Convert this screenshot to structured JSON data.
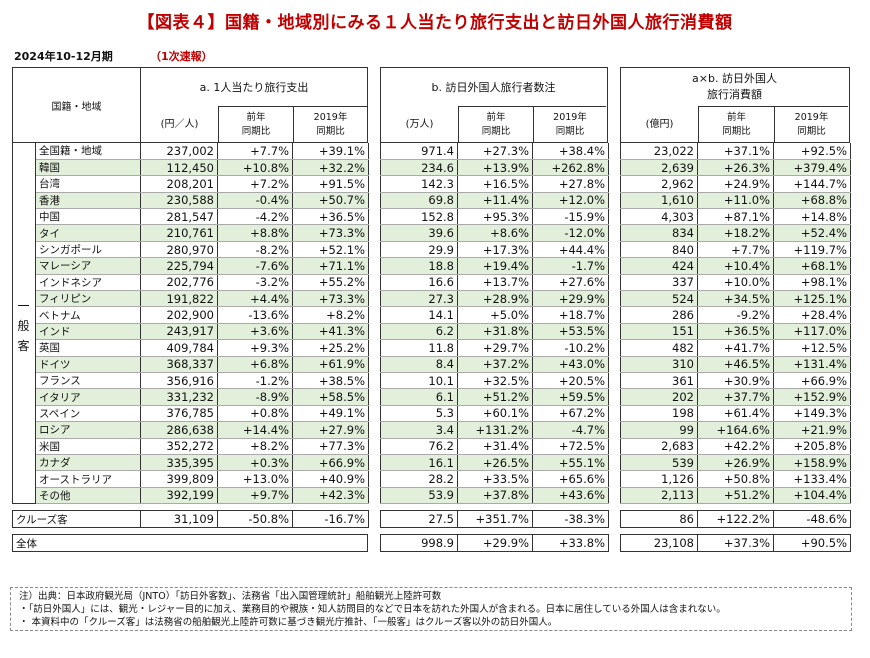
{
  "title": "【図表４】国籍・地域別にみる１人当たり旅行支出と訪日外国人旅行消費額",
  "period": "2024年10-12月期",
  "prelim": "（1次速報）",
  "header": {
    "region": "国籍・地域",
    "a_title": "a. 1人当たり旅行支出",
    "a_unit": "(円／人)",
    "b_title": "b. 訪日外国人旅行者数注",
    "b_unit": "(万人)",
    "c_title1": "a×b. 訪日外国人",
    "c_title2": "旅行消費額",
    "c_unit": "(億円)",
    "yoy1": "前年",
    "yoy2": "同期比",
    "v19_1": "2019年",
    "v19_2": "同期比"
  },
  "general_label": [
    "一",
    "般",
    "客"
  ],
  "rows": [
    [
      "全国籍・地域",
      "237,002",
      "+7.7%",
      "+39.1%",
      "971.4",
      "+27.3%",
      "+38.4%",
      "23,022",
      "+37.1%",
      "+92.5%"
    ],
    [
      "韓国",
      "112,450",
      "+10.8%",
      "+32.2%",
      "234.6",
      "+13.9%",
      "+262.8%",
      "2,639",
      "+26.3%",
      "+379.4%"
    ],
    [
      "台湾",
      "208,201",
      "+7.2%",
      "+91.5%",
      "142.3",
      "+16.5%",
      "+27.8%",
      "2,962",
      "+24.9%",
      "+144.7%"
    ],
    [
      "香港",
      "230,588",
      "-0.4%",
      "+50.7%",
      "69.8",
      "+11.4%",
      "+12.0%",
      "1,610",
      "+11.0%",
      "+68.8%"
    ],
    [
      "中国",
      "281,547",
      "-4.2%",
      "+36.5%",
      "152.8",
      "+95.3%",
      "-15.9%",
      "4,303",
      "+87.1%",
      "+14.8%"
    ],
    [
      "タイ",
      "210,761",
      "+8.8%",
      "+73.3%",
      "39.6",
      "+8.6%",
      "-12.0%",
      "834",
      "+18.2%",
      "+52.4%"
    ],
    [
      "シンガポール",
      "280,970",
      "-8.2%",
      "+52.1%",
      "29.9",
      "+17.3%",
      "+44.4%",
      "840",
      "+7.7%",
      "+119.7%"
    ],
    [
      "マレーシア",
      "225,794",
      "-7.6%",
      "+71.1%",
      "18.8",
      "+19.4%",
      "-1.7%",
      "424",
      "+10.4%",
      "+68.1%"
    ],
    [
      "インドネシア",
      "202,776",
      "-3.2%",
      "+55.2%",
      "16.6",
      "+13.7%",
      "+27.6%",
      "337",
      "+10.0%",
      "+98.1%"
    ],
    [
      "フィリピン",
      "191,822",
      "+4.4%",
      "+73.3%",
      "27.3",
      "+28.9%",
      "+29.9%",
      "524",
      "+34.5%",
      "+125.1%"
    ],
    [
      "ベトナム",
      "202,900",
      "-13.6%",
      "+8.2%",
      "14.1",
      "+5.0%",
      "+18.7%",
      "286",
      "-9.2%",
      "+28.4%"
    ],
    [
      "インド",
      "243,917",
      "+3.6%",
      "+41.3%",
      "6.2",
      "+31.8%",
      "+53.5%",
      "151",
      "+36.5%",
      "+117.0%"
    ],
    [
      "英国",
      "409,784",
      "+9.3%",
      "+25.2%",
      "11.8",
      "+29.7%",
      "-10.2%",
      "482",
      "+41.7%",
      "+12.5%"
    ],
    [
      "ドイツ",
      "368,337",
      "+6.8%",
      "+61.9%",
      "8.4",
      "+37.2%",
      "+43.0%",
      "310",
      "+46.5%",
      "+131.4%"
    ],
    [
      "フランス",
      "356,916",
      "-1.2%",
      "+38.5%",
      "10.1",
      "+32.5%",
      "+20.5%",
      "361",
      "+30.9%",
      "+66.9%"
    ],
    [
      "イタリア",
      "331,232",
      "-8.9%",
      "+58.5%",
      "6.1",
      "+51.2%",
      "+59.5%",
      "202",
      "+37.7%",
      "+152.9%"
    ],
    [
      "スペイン",
      "376,785",
      "+0.8%",
      "+49.1%",
      "5.3",
      "+60.1%",
      "+67.2%",
      "198",
      "+61.4%",
      "+149.3%"
    ],
    [
      "ロシア",
      "286,638",
      "+14.4%",
      "+27.9%",
      "3.4",
      "+131.2%",
      "-4.7%",
      "99",
      "+164.6%",
      "+21.9%"
    ],
    [
      "米国",
      "352,272",
      "+8.2%",
      "+77.3%",
      "76.2",
      "+31.4%",
      "+72.5%",
      "2,683",
      "+42.2%",
      "+205.8%"
    ],
    [
      "カナダ",
      "335,395",
      "+0.3%",
      "+66.9%",
      "16.1",
      "+26.5%",
      "+55.1%",
      "539",
      "+26.9%",
      "+158.9%"
    ],
    [
      "オーストラリア",
      "399,809",
      "+13.0%",
      "+40.9%",
      "28.2",
      "+33.5%",
      "+65.6%",
      "1,126",
      "+50.8%",
      "+133.4%"
    ],
    [
      "その他",
      "392,199",
      "+9.7%",
      "+42.3%",
      "53.9",
      "+37.8%",
      "+43.6%",
      "2,113",
      "+51.2%",
      "+104.4%"
    ]
  ],
  "cruise": [
    "クルーズ客",
    "31,109",
    "-50.8%",
    "-16.7%",
    "27.5",
    "+351.7%",
    "-38.3%",
    "86",
    "+122.2%",
    "-48.6%"
  ],
  "total": [
    "全体",
    "998.9",
    "+29.9%",
    "+33.8%",
    "23,108",
    "+37.3%",
    "+90.5%"
  ],
  "notes": [
    "注）出典：日本政府観光局（JNTO）「訪日外客数」、法務省「出入国管理統計」船舶観光上陸許可数",
    "・「訪日外国人」には、観光・レジャー目的に加え、業務目的や親族・知人訪問目的などで日本を訪れた外国人が含まれる。日本に居住している外国人は含まれない。",
    "・ 本資料中の「クルーズ客」は法務省の船舶観光上陸許可数に基づき観光庁推計、「一般客」はクルーズ客以外の訪日外国人。"
  ]
}
